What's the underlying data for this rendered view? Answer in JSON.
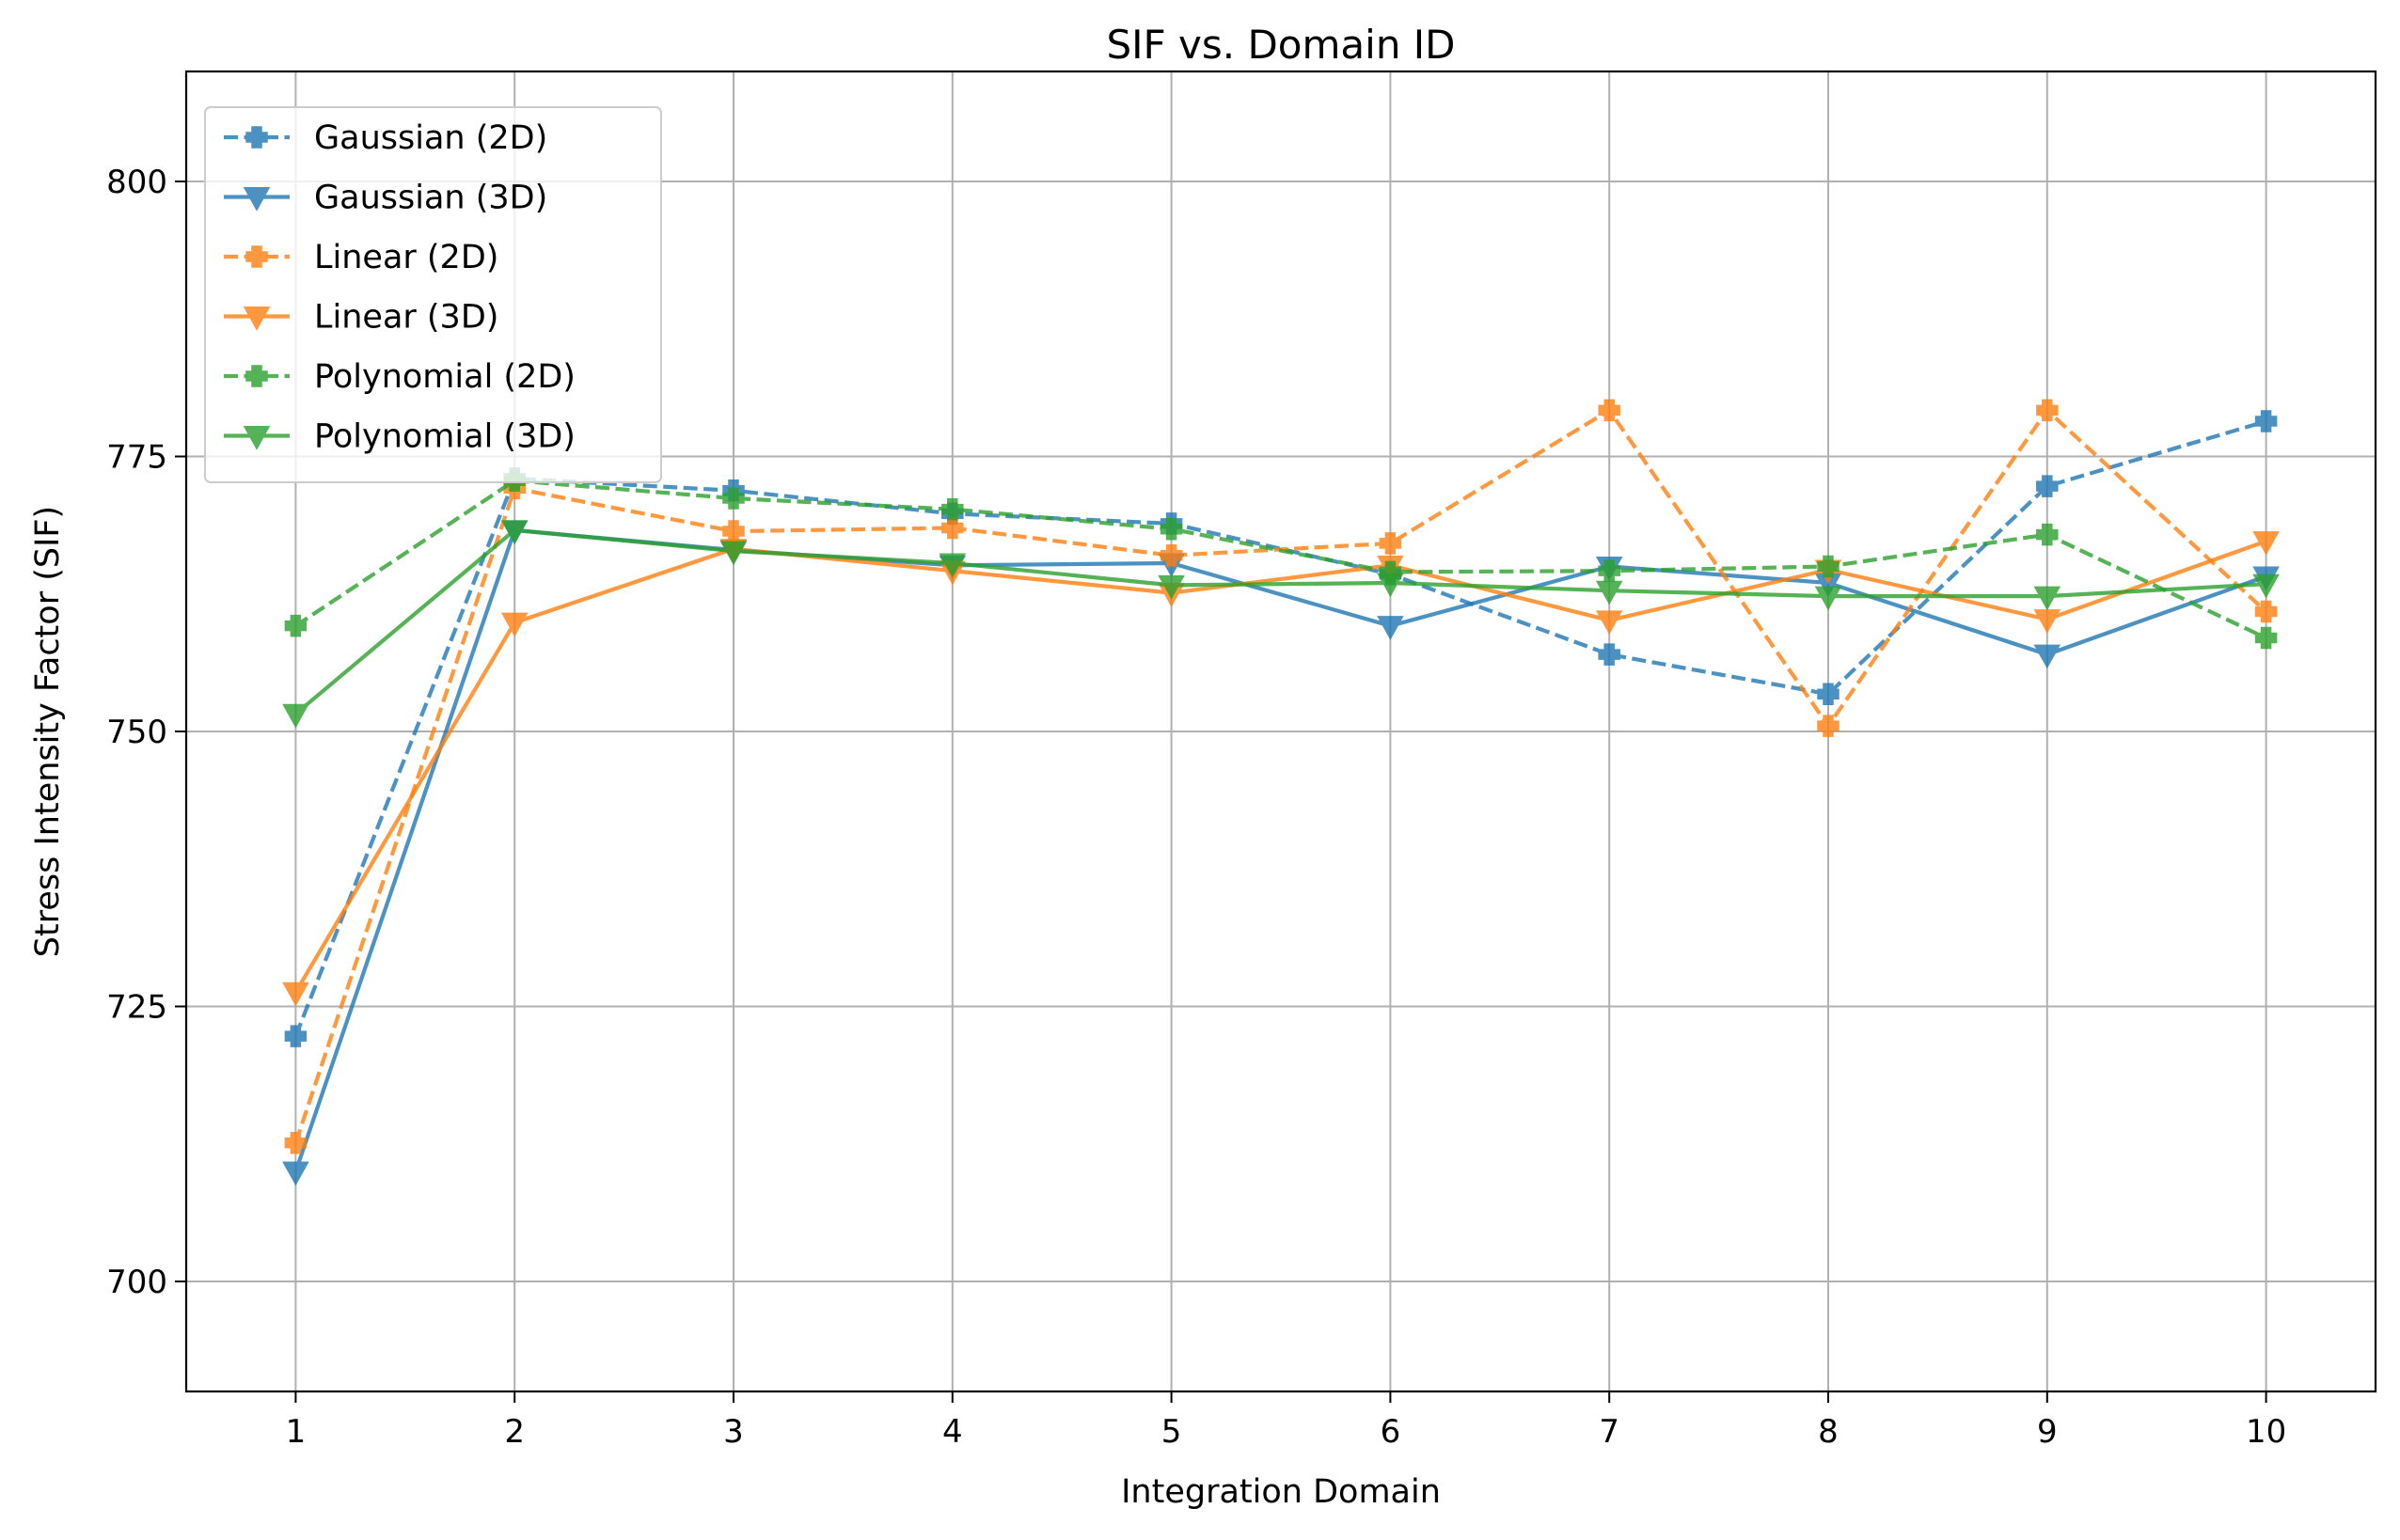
{
  "chart_data": {
    "type": "line",
    "title": "SIF vs. Domain ID",
    "xlabel": "Integration Domain",
    "ylabel": "Stress Intensity Factor (SIF)",
    "x": [
      1,
      2,
      3,
      4,
      5,
      6,
      7,
      8,
      9,
      10
    ],
    "xticks": [
      "1",
      "2",
      "3",
      "4",
      "5",
      "6",
      "7",
      "8",
      "9",
      "10"
    ],
    "xlim": [
      0.5,
      10.5
    ],
    "ylim": [
      690,
      810
    ],
    "yticks": [
      700,
      725,
      750,
      775,
      800
    ],
    "grid": true,
    "legend_position": "upper-left",
    "series": [
      {
        "name": "Gaussian (2D)",
        "color": "#1f77b4",
        "dashed": true,
        "marker": "plus",
        "values": [
          722.3,
          773.0,
          771.9,
          769.8,
          768.9,
          764.3,
          757.0,
          753.4,
          772.3,
          778.2
        ]
      },
      {
        "name": "Gaussian (3D)",
        "color": "#1f77b4",
        "dashed": false,
        "marker": "triangle-down",
        "values": [
          710.0,
          768.3,
          766.5,
          765.1,
          765.3,
          759.6,
          765.0,
          763.5,
          757.0,
          764.1
        ]
      },
      {
        "name": "Linear (2D)",
        "color": "#ff7f0e",
        "dashed": true,
        "marker": "plus",
        "values": [
          712.6,
          772.1,
          768.2,
          768.5,
          766.0,
          767.1,
          779.2,
          750.5,
          779.2,
          760.9
        ]
      },
      {
        "name": "Linear (3D)",
        "color": "#ff7f0e",
        "dashed": false,
        "marker": "triangle-down",
        "values": [
          726.3,
          759.9,
          766.6,
          764.6,
          762.6,
          765.1,
          760.1,
          764.7,
          760.2,
          767.3
        ]
      },
      {
        "name": "Polynomial (2D)",
        "color": "#2ca02c",
        "dashed": true,
        "marker": "plus",
        "values": [
          759.6,
          772.8,
          771.2,
          770.2,
          768.4,
          764.5,
          764.6,
          765.0,
          767.9,
          758.5
        ]
      },
      {
        "name": "Polynomial (3D)",
        "color": "#2ca02c",
        "dashed": false,
        "marker": "triangle-down",
        "values": [
          751.6,
          768.3,
          766.4,
          765.3,
          763.3,
          763.5,
          762.8,
          762.3,
          762.3,
          763.4
        ]
      }
    ]
  }
}
